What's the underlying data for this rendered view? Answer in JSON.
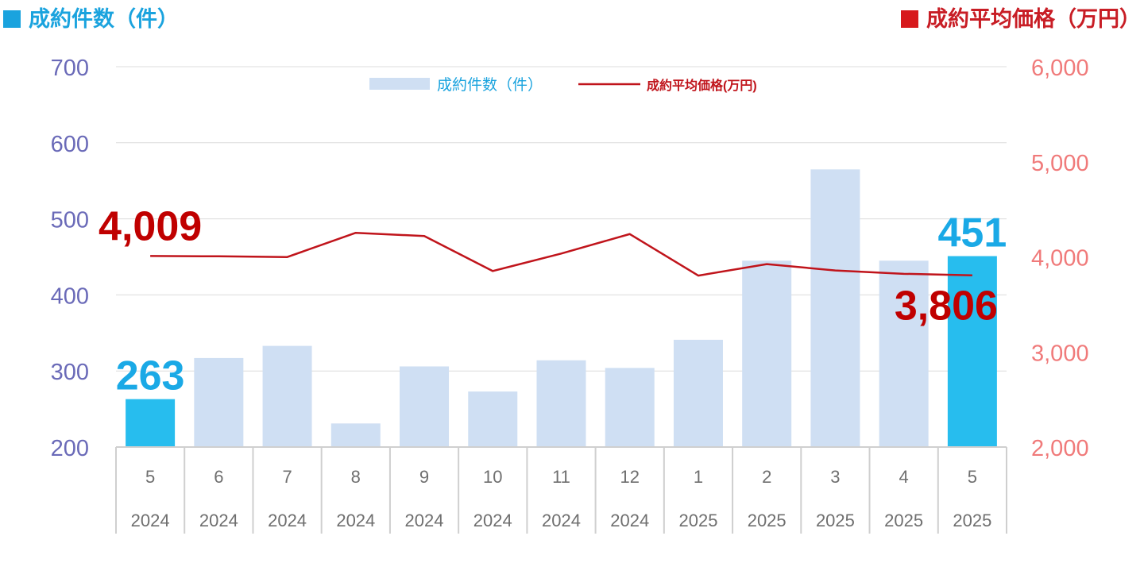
{
  "header": {
    "left_title": "成約件数（件）",
    "right_title": "成約平均価格（万円）"
  },
  "legend": {
    "bar_label": "成約件数（件）",
    "line_label": "成約平均価格(万円)"
  },
  "colors": {
    "bar": "#cfdff3",
    "bar_highlight": "#27bdee",
    "line": "#c0141b",
    "left_axis_text": "#6a6ab8",
    "right_axis_text": "#f07a7a",
    "left_title": "#1aa3de",
    "right_title": "#c81d25",
    "highlight_label_bar": "#1aa9e6",
    "highlight_label_line": "#c00000",
    "category_text": "#6f6f6f",
    "grid": "#dcdcdc"
  },
  "chart_data": {
    "type": "bar",
    "categories": [
      "5",
      "6",
      "7",
      "8",
      "9",
      "10",
      "11",
      "12",
      "1",
      "2",
      "3",
      "4",
      "5"
    ],
    "years": [
      "2024",
      "2024",
      "2024",
      "2024",
      "2024",
      "2024",
      "2024",
      "2024",
      "2025",
      "2025",
      "2025",
      "2025",
      "2025"
    ],
    "series": [
      {
        "name": "成約件数（件）",
        "type": "bar",
        "axis": "left",
        "values": [
          263,
          317,
          333,
          231,
          306,
          273,
          314,
          304,
          341,
          445,
          565,
          445,
          451
        ],
        "highlighted": [
          0,
          12
        ]
      },
      {
        "name": "成約平均価格(万円)",
        "type": "line",
        "axis": "right",
        "values": [
          4009,
          4006,
          3998,
          4253,
          4219,
          3851,
          4035,
          4240,
          3803,
          3924,
          3857,
          3822,
          3806
        ]
      }
    ],
    "left_axis": {
      "min": 200,
      "max": 700,
      "ticks": [
        "200",
        "300",
        "400",
        "500",
        "600",
        "700"
      ]
    },
    "right_axis": {
      "min": 2000,
      "max": 6000,
      "ticks": [
        "2,000",
        "3,000",
        "4,000",
        "5,000",
        "6,000"
      ]
    },
    "annotations": [
      {
        "text": "263",
        "series": "bar",
        "index": 0
      },
      {
        "text": "451",
        "series": "bar",
        "index": 12
      },
      {
        "text": "4,009",
        "series": "line",
        "index": 0
      },
      {
        "text": "3,806",
        "series": "line",
        "index": 12
      }
    ],
    "grid": true,
    "legend_position": "top-center"
  }
}
